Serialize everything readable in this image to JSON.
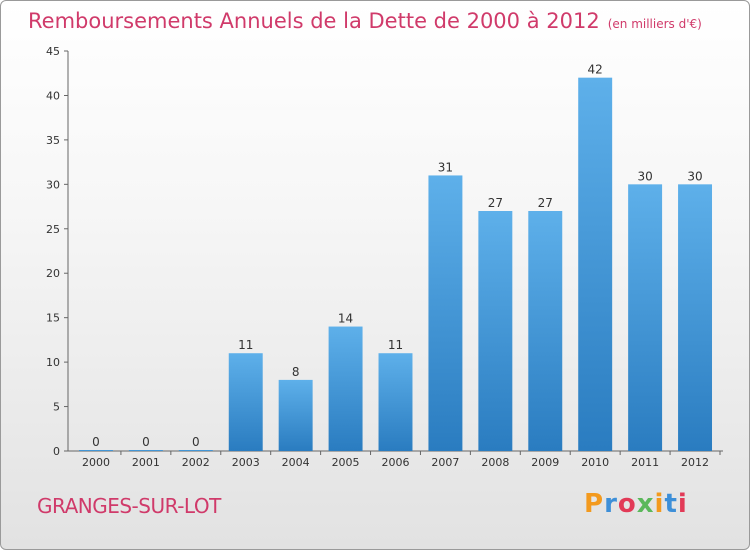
{
  "title": "Remboursements Annuels de la Dette de 2000 à 2012",
  "unit": "(en milliers d'€)",
  "place": "GRANGES-SUR-LOT",
  "logo": {
    "text": "Proxiti",
    "letter_colors": [
      "#f39a1e",
      "#3d8fd8",
      "#e23a57",
      "#5bb85b",
      "#f39a1e",
      "#3d8fd8",
      "#e23a57"
    ]
  },
  "colors": {
    "title": "#d03a6a",
    "bar_top": "#5eb0ea",
    "bar_bottom": "#2a7cc0"
  },
  "chart_data": {
    "type": "bar",
    "categories": [
      "2000",
      "2001",
      "2002",
      "2003",
      "2004",
      "2005",
      "2006",
      "2007",
      "2008",
      "2009",
      "2010",
      "2011",
      "2012"
    ],
    "values": [
      0,
      0,
      0,
      11,
      8,
      14,
      11,
      31,
      27,
      27,
      42,
      30,
      30
    ],
    "data_labels": [
      "0",
      "0",
      "0",
      "11",
      "8",
      "14",
      "11",
      "31",
      "27",
      "27",
      "42",
      "30",
      "30"
    ],
    "ylim": [
      0,
      45
    ],
    "yticks": [
      0,
      5,
      10,
      15,
      20,
      25,
      30,
      35,
      40,
      45
    ],
    "grid": false,
    "title": "Remboursements Annuels de la Dette de 2000 à 2012",
    "xlabel": "",
    "ylabel": ""
  }
}
